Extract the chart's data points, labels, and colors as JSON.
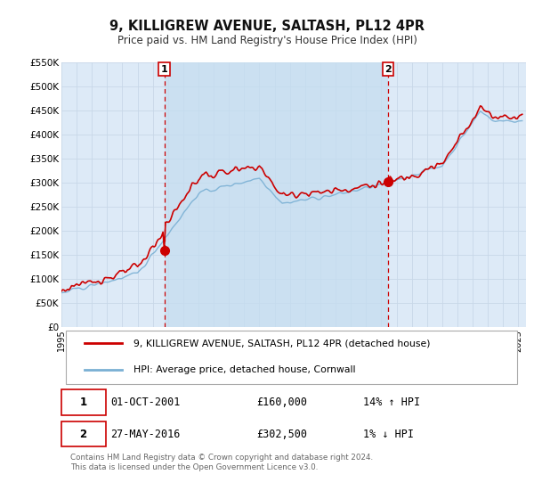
{
  "title": "9, KILLIGREW AVENUE, SALTASH, PL12 4PR",
  "subtitle": "Price paid vs. HM Land Registry's House Price Index (HPI)",
  "background_color": "#ffffff",
  "plot_bg_color": "#ddeaf7",
  "grid_color": "#c8d8e8",
  "line1_color": "#cc0000",
  "line2_color": "#7ab0d4",
  "line1_label": "9, KILLIGREW AVENUE, SALTASH, PL12 4PR (detached house)",
  "line2_label": "HPI: Average price, detached house, Cornwall",
  "ylim": [
    0,
    550000
  ],
  "yticks": [
    0,
    50000,
    100000,
    150000,
    200000,
    250000,
    300000,
    350000,
    400000,
    450000,
    500000,
    550000
  ],
  "ytick_labels": [
    "£0",
    "£50K",
    "£100K",
    "£150K",
    "£200K",
    "£250K",
    "£300K",
    "£350K",
    "£400K",
    "£450K",
    "£500K",
    "£550K"
  ],
  "xmin": 1995.0,
  "xmax": 2025.5,
  "xticks": [
    1995,
    1996,
    1997,
    1998,
    1999,
    2000,
    2001,
    2002,
    2003,
    2004,
    2005,
    2006,
    2007,
    2008,
    2009,
    2010,
    2011,
    2012,
    2013,
    2014,
    2015,
    2016,
    2017,
    2018,
    2019,
    2020,
    2021,
    2022,
    2023,
    2024,
    2025
  ],
  "sale1_x": 2001.75,
  "sale1_y": 160000,
  "sale2_x": 2016.42,
  "sale2_y": 302500,
  "shade_between_sales": true,
  "shade_color": "#c5ddf0",
  "sale_box_color": "#cc0000",
  "footer_text": "Contains HM Land Registry data © Crown copyright and database right 2024.\nThis data is licensed under the Open Government Licence v3.0."
}
